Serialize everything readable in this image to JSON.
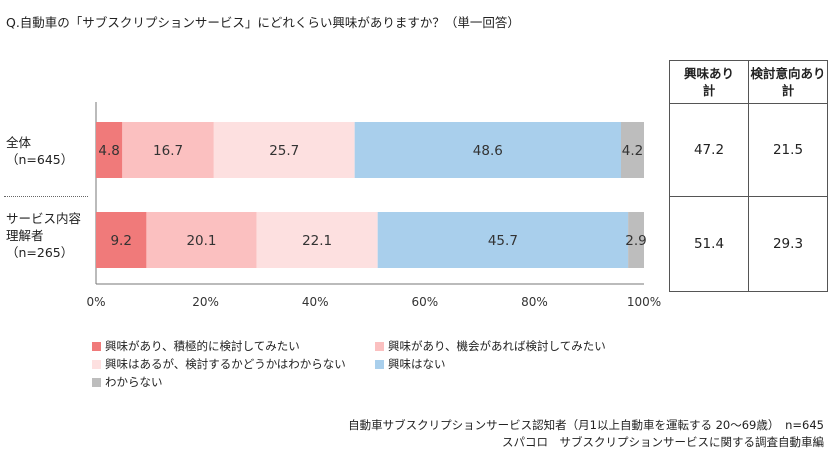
{
  "title": "Q.自動車の「サブスクリプションサービス」にどれくらい興味がありますか？（単一回答）",
  "chart_data": {
    "type": "bar",
    "orientation": "horizontal-stacked-100",
    "categories": [
      "全体\n（n=645）",
      "サービス内容\n理解者\n（n=265）"
    ],
    "series": [
      {
        "name": "興味があり、積極的に検討してみたい",
        "color": "#F07A7A",
        "values": [
          4.8,
          9.2
        ]
      },
      {
        "name": "興味があり、機会があれば検討してみたい",
        "color": "#FBC0C0",
        "values": [
          16.7,
          20.1
        ]
      },
      {
        "name": "興味はあるが、検討するかどうかはわからない",
        "color": "#FDE0E0",
        "values": [
          25.7,
          22.1
        ]
      },
      {
        "name": "興味はない",
        "color": "#A9CFEC",
        "values": [
          48.6,
          45.7
        ]
      },
      {
        "name": "わからない",
        "color": "#BDBDBD",
        "values": [
          4.2,
          2.9
        ]
      }
    ],
    "xticks": [
      "0%",
      "20%",
      "40%",
      "60%",
      "80%",
      "100%"
    ],
    "xlim": [
      0,
      100
    ],
    "legend_position": "bottom"
  },
  "table": {
    "headers": [
      "興味あり\n計",
      "検討意向あり\n計"
    ],
    "rows": [
      [
        "47.2",
        "21.5"
      ],
      [
        "51.4",
        "29.3"
      ]
    ]
  },
  "rows": [
    {
      "line1": "全体",
      "line2": "（n=645）",
      "line3": ""
    },
    {
      "line1": "サービス内容",
      "line2": "理解者",
      "line3": "（n=265）"
    }
  ],
  "notes": {
    "base": "自動車サブスクリプションサービス認知者（月1以上自動車を運転する 20～69歳）　n=645",
    "source": "スパコロ　サブスクリプションサービスに関する調査自動車編"
  }
}
